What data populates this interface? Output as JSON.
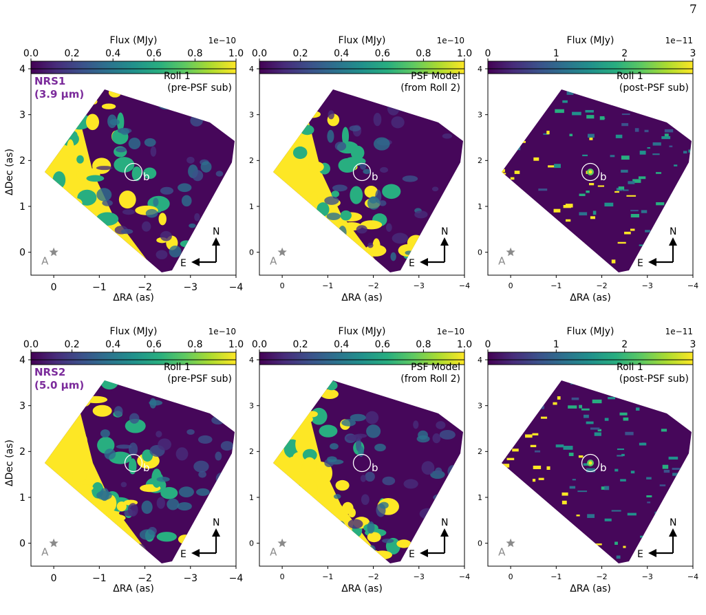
{
  "page_number": "7",
  "colors": {
    "viridis": [
      "#440154",
      "#472d7b",
      "#3b528b",
      "#2c728e",
      "#21918c",
      "#28ae80",
      "#5ec962",
      "#addc30",
      "#fde725"
    ],
    "background_low": "#46075a",
    "saturated": "#fde725",
    "label_purple": "#7b2b9b",
    "star_gray": "#8a8a8a"
  },
  "chart_data": [
    {
      "type": "heatmap",
      "row": 1,
      "col": 1,
      "colorbar": {
        "label": "Flux (MJy)",
        "offset": "1e−10",
        "range": [
          0,
          1.0
        ],
        "ticks": [
          "0.0",
          "0.2",
          "0.4",
          "0.6",
          "0.8",
          "1.0"
        ]
      },
      "annotation": [
        "Roll 1",
        "(pre-PSF sub)"
      ],
      "detector": [
        "NRS1",
        "(3.9 μm)"
      ],
      "xlabel": "ΔRA (as)",
      "ylabel": "ΔDec (as)",
      "xlim": [
        0.5,
        -4
      ],
      "ylim": [
        -0.5,
        4
      ],
      "xticks": [
        "0",
        "−1",
        "−2",
        "−3",
        "−4"
      ],
      "yticks": [
        "0",
        "1",
        "2",
        "3",
        "4"
      ],
      "companion": {
        "label": "b",
        "x": -1.75,
        "y": 1.75
      },
      "star": {
        "label": "A",
        "x": 0,
        "y": 0
      },
      "compass": {
        "north": "N",
        "east": "E"
      },
      "residual": false
    },
    {
      "type": "heatmap",
      "row": 1,
      "col": 2,
      "colorbar": {
        "label": "Flux (MJy)",
        "offset": "1e−10",
        "range": [
          0,
          1.0
        ],
        "ticks": [
          "0.0",
          "0.2",
          "0.4",
          "0.6",
          "0.8",
          "1.0"
        ]
      },
      "annotation": [
        "PSF Model",
        "(from Roll 2)"
      ],
      "xlabel": "ΔRA (as)",
      "xlim": [
        0.5,
        -4
      ],
      "ylim": [
        -0.5,
        4
      ],
      "xticks": [
        "0",
        "−1",
        "−2",
        "−3",
        "−4"
      ],
      "yticks": [
        "0",
        "1",
        "2",
        "3",
        "4"
      ],
      "companion": {
        "label": "b",
        "x": -1.75,
        "y": 1.75
      },
      "star": {
        "label": "A",
        "x": 0,
        "y": 0
      },
      "compass": {
        "north": "N",
        "east": "E"
      },
      "residual": false
    },
    {
      "type": "heatmap",
      "row": 1,
      "col": 3,
      "colorbar": {
        "label": "Flux (MJy)",
        "offset": "1e−11",
        "range": [
          0,
          3
        ],
        "ticks": [
          "0",
          "1",
          "2",
          "3"
        ]
      },
      "annotation": [
        "Roll 1",
        "(post-PSF sub)"
      ],
      "xlabel": "ΔRA (as)",
      "xlim": [
        0.5,
        -4
      ],
      "ylim": [
        -0.5,
        4
      ],
      "xticks": [
        "0",
        "−1",
        "−2",
        "−3",
        "−4"
      ],
      "yticks": [
        "0",
        "1",
        "2",
        "3",
        "4"
      ],
      "companion": {
        "label": "b",
        "x": -1.75,
        "y": 1.75
      },
      "star": {
        "label": "A",
        "x": 0,
        "y": 0
      },
      "compass": {
        "north": "N",
        "east": "E"
      },
      "residual": true
    },
    {
      "type": "heatmap",
      "row": 2,
      "col": 1,
      "colorbar": {
        "label": "Flux (MJy)",
        "offset": "1e−10",
        "range": [
          0,
          1.0
        ],
        "ticks": [
          "0.0",
          "0.2",
          "0.4",
          "0.6",
          "0.8",
          "1.0"
        ]
      },
      "annotation": [
        "Roll 1",
        "(pre-PSF sub)"
      ],
      "detector": [
        "NRS2",
        "(5.0 μm)"
      ],
      "xlabel": "ΔRA (as)",
      "ylabel": "ΔDec (as)",
      "xlim": [
        0.5,
        -4
      ],
      "ylim": [
        -0.5,
        4
      ],
      "xticks": [
        "0",
        "−1",
        "−2",
        "−3",
        "−4"
      ],
      "yticks": [
        "0",
        "1",
        "2",
        "3",
        "4"
      ],
      "companion": {
        "label": "b",
        "x": -1.75,
        "y": 1.75
      },
      "star": {
        "label": "A",
        "x": 0,
        "y": 0
      },
      "compass": {
        "north": "N",
        "east": "E"
      },
      "residual": false
    },
    {
      "type": "heatmap",
      "row": 2,
      "col": 2,
      "colorbar": {
        "label": "Flux (MJy)",
        "offset": "1e−10",
        "range": [
          0,
          1.0
        ],
        "ticks": [
          "0.0",
          "0.2",
          "0.4",
          "0.6",
          "0.8",
          "1.0"
        ]
      },
      "annotation": [
        "PSF Model",
        "(from Roll 2)"
      ],
      "xlabel": "ΔRA (as)",
      "xlim": [
        0.5,
        -4
      ],
      "ylim": [
        -0.5,
        4
      ],
      "xticks": [
        "0",
        "−1",
        "−2",
        "−3",
        "−4"
      ],
      "yticks": [
        "0",
        "1",
        "2",
        "3",
        "4"
      ],
      "companion": {
        "label": "b",
        "x": -1.75,
        "y": 1.75
      },
      "star": {
        "label": "A",
        "x": 0,
        "y": 0
      },
      "compass": {
        "north": "N",
        "east": "E"
      },
      "residual": false
    },
    {
      "type": "heatmap",
      "row": 2,
      "col": 3,
      "colorbar": {
        "label": "Flux (MJy)",
        "offset": "1e−11",
        "range": [
          0,
          3
        ],
        "ticks": [
          "0",
          "1",
          "2",
          "3"
        ]
      },
      "annotation": [
        "Roll 1",
        "(post-PSF sub)"
      ],
      "xlabel": "ΔRA (as)",
      "xlim": [
        0.5,
        -4
      ],
      "ylim": [
        -0.5,
        4
      ],
      "xticks": [
        "0",
        "−1",
        "−2",
        "−3",
        "−4"
      ],
      "yticks": [
        "0",
        "1",
        "2",
        "3",
        "4"
      ],
      "companion": {
        "label": "b",
        "x": -1.75,
        "y": 1.75
      },
      "star": {
        "label": "A",
        "x": 0,
        "y": 0
      },
      "compass": {
        "north": "N",
        "east": "E"
      },
      "residual": true
    }
  ]
}
